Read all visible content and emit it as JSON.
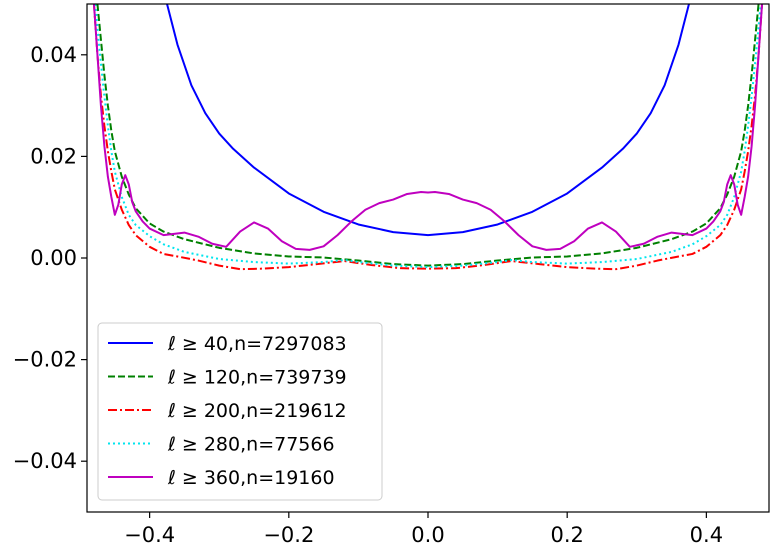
{
  "chart_data": {
    "type": "line",
    "xlim": [
      -0.49,
      0.49
    ],
    "ylim": [
      -0.05,
      0.05
    ],
    "xticks": [
      -0.4,
      -0.2,
      0.0,
      0.2,
      0.4
    ],
    "yticks": [
      0.04,
      0.02,
      0.0,
      -0.02,
      -0.04
    ],
    "xtick_labels": [
      "−0.4",
      "−0.2",
      "0.0",
      "0.2",
      "0.4"
    ],
    "ytick_labels": [
      "0.04",
      "0.02",
      "0.00",
      "−0.02",
      "−0.04"
    ],
    "grid": false,
    "legend_position": "lower-left",
    "series": [
      {
        "name": "ℓ ≥ 40,n=7297083",
        "color": "#0000ff",
        "dash": "solid",
        "x": [
          -0.375,
          -0.36,
          -0.34,
          -0.32,
          -0.3,
          -0.28,
          -0.25,
          -0.2,
          -0.15,
          -0.1,
          -0.05,
          0.0,
          0.05,
          0.1,
          0.15,
          0.2,
          0.25,
          0.28,
          0.3,
          0.32,
          0.34,
          0.36,
          0.375
        ],
        "y": [
          0.05,
          0.042,
          0.034,
          0.0285,
          0.0245,
          0.0215,
          0.0178,
          0.0127,
          0.0091,
          0.0066,
          0.0051,
          0.0045,
          0.0051,
          0.0066,
          0.0091,
          0.0127,
          0.0178,
          0.0215,
          0.0245,
          0.0285,
          0.034,
          0.042,
          0.05
        ]
      },
      {
        "name": "ℓ ≥ 120,n=739739",
        "color": "#008000",
        "dash": "dashed",
        "x": [
          -0.475,
          -0.47,
          -0.465,
          -0.46,
          -0.455,
          -0.45,
          -0.44,
          -0.43,
          -0.42,
          -0.4,
          -0.38,
          -0.35,
          -0.3,
          -0.25,
          -0.2,
          -0.15,
          -0.1,
          -0.05,
          0.0,
          0.05,
          0.1,
          0.15,
          0.2,
          0.25,
          0.3,
          0.35,
          0.38,
          0.4,
          0.42,
          0.43,
          0.44,
          0.45,
          0.455,
          0.46,
          0.465,
          0.47,
          0.475
        ],
        "y": [
          0.05,
          0.043,
          0.036,
          0.03,
          0.025,
          0.021,
          0.016,
          0.0125,
          0.0098,
          0.0068,
          0.0052,
          0.0037,
          0.002,
          0.0009,
          0.0003,
          0.0001,
          -0.0005,
          -0.0012,
          -0.0015,
          -0.0012,
          -0.0005,
          0.0001,
          0.0003,
          0.0009,
          0.002,
          0.0037,
          0.0052,
          0.0068,
          0.0098,
          0.0125,
          0.016,
          0.021,
          0.025,
          0.03,
          0.036,
          0.043,
          0.05
        ]
      },
      {
        "name": "ℓ ≥ 200,n=219612",
        "color": "#ff0000",
        "dash": "dashdot",
        "x": [
          -0.48,
          -0.475,
          -0.47,
          -0.465,
          -0.46,
          -0.455,
          -0.45,
          -0.44,
          -0.43,
          -0.42,
          -0.4,
          -0.38,
          -0.36,
          -0.33,
          -0.3,
          -0.27,
          -0.24,
          -0.2,
          -0.16,
          -0.12,
          -0.08,
          -0.04,
          0.0,
          0.04,
          0.08,
          0.12,
          0.16,
          0.2,
          0.24,
          0.27,
          0.3,
          0.33,
          0.36,
          0.38,
          0.4,
          0.42,
          0.43,
          0.44,
          0.45,
          0.455,
          0.46,
          0.465,
          0.47,
          0.475,
          0.48
        ],
        "y": [
          0.05,
          0.04,
          0.032,
          0.026,
          0.021,
          0.017,
          0.0135,
          0.0095,
          0.0065,
          0.0045,
          0.0022,
          0.0008,
          0.0003,
          -0.0005,
          -0.0015,
          -0.0022,
          -0.0021,
          -0.0018,
          -0.0012,
          -0.0006,
          -0.0014,
          -0.002,
          -0.0021,
          -0.002,
          -0.0014,
          -0.0006,
          -0.0012,
          -0.0018,
          -0.0021,
          -0.0022,
          -0.0015,
          -0.0005,
          0.0003,
          0.0008,
          0.0022,
          0.0045,
          0.0065,
          0.0095,
          0.0135,
          0.017,
          0.021,
          0.026,
          0.032,
          0.04,
          0.05
        ]
      },
      {
        "name": "ℓ ≥ 280,n=77566",
        "color": "#00e5ee",
        "dash": "dotted",
        "x": [
          -0.478,
          -0.472,
          -0.466,
          -0.46,
          -0.455,
          -0.45,
          -0.44,
          -0.43,
          -0.42,
          -0.4,
          -0.38,
          -0.35,
          -0.3,
          -0.25,
          -0.2,
          -0.15,
          -0.12,
          -0.1,
          -0.05,
          0.0,
          0.05,
          0.1,
          0.12,
          0.15,
          0.2,
          0.25,
          0.3,
          0.35,
          0.38,
          0.4,
          0.42,
          0.43,
          0.44,
          0.45,
          0.455,
          0.46,
          0.466,
          0.472,
          0.478
        ],
        "y": [
          0.05,
          0.041,
          0.033,
          0.026,
          0.021,
          0.017,
          0.012,
          0.0085,
          0.0065,
          0.0043,
          0.0027,
          0.0012,
          -0.0002,
          -0.0008,
          -0.0011,
          -0.0008,
          -0.0004,
          -0.0008,
          -0.0015,
          -0.0018,
          -0.0015,
          -0.0008,
          -0.0004,
          -0.0008,
          -0.0011,
          -0.0008,
          -0.0002,
          0.0012,
          0.0027,
          0.0043,
          0.0065,
          0.0085,
          0.012,
          0.017,
          0.021,
          0.026,
          0.033,
          0.041,
          0.05
        ]
      },
      {
        "name": "ℓ ≥ 360,n=19160",
        "color": "#bf00bf",
        "dash": "solid",
        "x": [
          -0.48,
          -0.475,
          -0.47,
          -0.465,
          -0.46,
          -0.455,
          -0.45,
          -0.445,
          -0.44,
          -0.435,
          -0.43,
          -0.425,
          -0.42,
          -0.41,
          -0.4,
          -0.38,
          -0.35,
          -0.33,
          -0.31,
          -0.29,
          -0.27,
          -0.25,
          -0.23,
          -0.21,
          -0.19,
          -0.17,
          -0.15,
          -0.13,
          -0.11,
          -0.09,
          -0.07,
          -0.05,
          -0.03,
          -0.01,
          0.0,
          0.01,
          0.03,
          0.05,
          0.07,
          0.09,
          0.11,
          0.13,
          0.15,
          0.17,
          0.19,
          0.21,
          0.23,
          0.25,
          0.27,
          0.29,
          0.31,
          0.33,
          0.35,
          0.38,
          0.4,
          0.41,
          0.42,
          0.425,
          0.43,
          0.435,
          0.44,
          0.445,
          0.45,
          0.455,
          0.46,
          0.465,
          0.47,
          0.475,
          0.48
        ],
        "y": [
          0.05,
          0.04,
          0.03,
          0.022,
          0.016,
          0.012,
          0.0085,
          0.0105,
          0.0145,
          0.0163,
          0.0145,
          0.011,
          0.0092,
          0.0072,
          0.0058,
          0.0045,
          0.005,
          0.0042,
          0.0028,
          0.0022,
          0.0052,
          0.007,
          0.0058,
          0.0033,
          0.0018,
          0.0016,
          0.0023,
          0.0045,
          0.0072,
          0.0095,
          0.0108,
          0.0115,
          0.0126,
          0.013,
          0.0129,
          0.013,
          0.0126,
          0.0115,
          0.0108,
          0.0095,
          0.0072,
          0.0045,
          0.0023,
          0.0016,
          0.0018,
          0.0033,
          0.0058,
          0.007,
          0.0052,
          0.0022,
          0.0028,
          0.0042,
          0.005,
          0.0045,
          0.0058,
          0.0072,
          0.0092,
          0.011,
          0.0145,
          0.0163,
          0.0145,
          0.0105,
          0.0085,
          0.012,
          0.016,
          0.022,
          0.03,
          0.04,
          0.05
        ]
      }
    ]
  }
}
